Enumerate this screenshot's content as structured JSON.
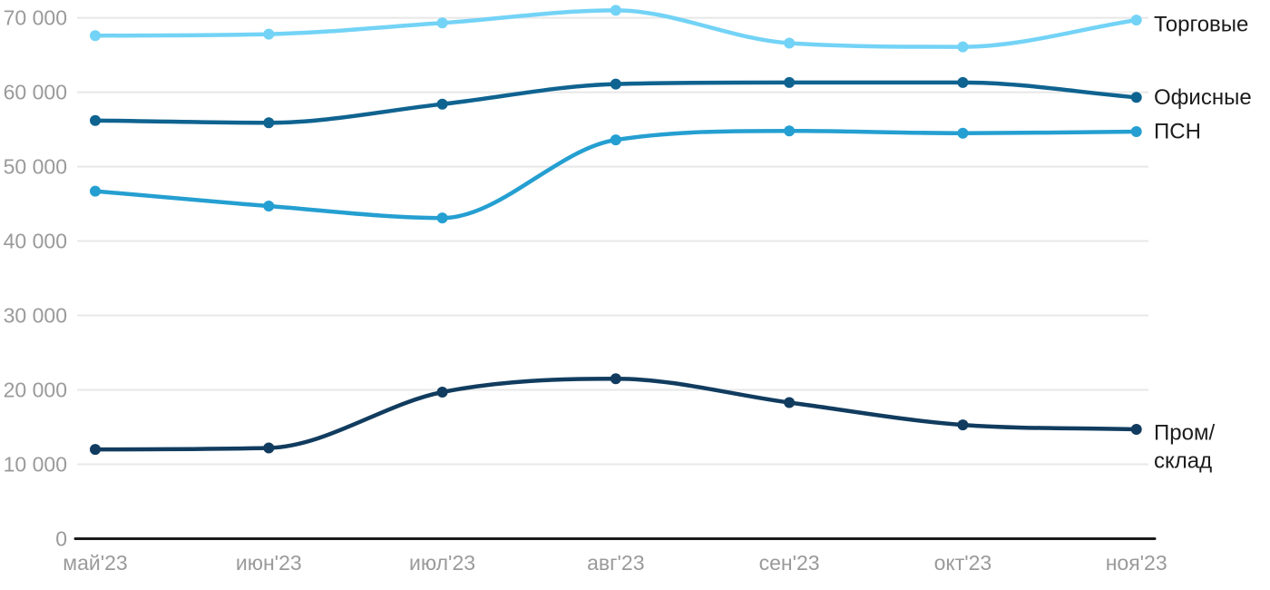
{
  "chart_data": {
    "type": "line",
    "title": "",
    "xlabel": "",
    "ylabel": "",
    "categories": [
      "май'23",
      "июн'23",
      "июл'23",
      "авг'23",
      "сен'23",
      "окт'23",
      "ноя'23"
    ],
    "series": [
      {
        "key": "torgovye",
        "name": "Торговые",
        "legend_lines": [
          "Торговые"
        ],
        "color": "#73d3f6",
        "values": [
          67600,
          67800,
          69300,
          71000,
          66600,
          66100,
          69700
        ]
      },
      {
        "key": "ofisnye",
        "name": "Офисные",
        "legend_lines": [
          "Офисные"
        ],
        "color": "#0f6390",
        "values": [
          56200,
          55900,
          58400,
          61100,
          61300,
          61300,
          59300
        ]
      },
      {
        "key": "psn",
        "name": "ПСН",
        "legend_lines": [
          "ПСН"
        ],
        "color": "#259fd1",
        "values": [
          46700,
          44700,
          43100,
          53600,
          54800,
          54500,
          54700
        ]
      },
      {
        "key": "prom-sklad",
        "name": "Пром/склад",
        "legend_lines": [
          "Пром/",
          "склад"
        ],
        "color": "#113c5f",
        "values": [
          12000,
          12200,
          19700,
          21500,
          18300,
          15300,
          14700
        ]
      }
    ],
    "y_ticks": [
      {
        "value": 0,
        "label": "0"
      },
      {
        "value": 10000,
        "label": "10 000"
      },
      {
        "value": 20000,
        "label": "20 000"
      },
      {
        "value": 30000,
        "label": "30 000"
      },
      {
        "value": 40000,
        "label": "40 000"
      },
      {
        "value": 50000,
        "label": "50 000"
      },
      {
        "value": 60000,
        "label": "60 000"
      },
      {
        "value": 70000,
        "label": "70 000"
      }
    ],
    "ylim": [
      0,
      71500
    ],
    "grid": true,
    "legend_position": "right-of-lines",
    "colors": {
      "background": "#ffffff",
      "grid_line": "#e8e8e8",
      "axis_line": "#1a1a1a",
      "tick_label": "#9a9a9a",
      "legend_text": "#1c1c1c"
    }
  }
}
